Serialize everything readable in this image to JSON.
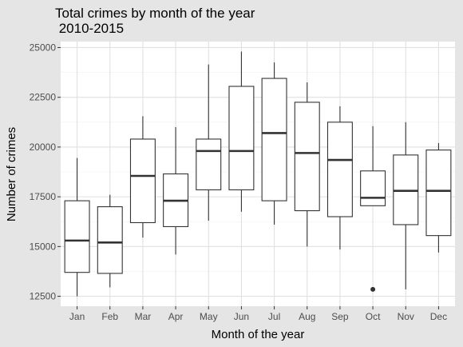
{
  "chart_data": {
    "type": "boxplot",
    "title_lines": [
      "Total crimes by month of the year",
      " 2010-2015"
    ],
    "xlabel": "Month of the year",
    "ylabel": "Number of crimes",
    "ylim": [
      12000,
      25300
    ],
    "y_ticks": [
      12500,
      15000,
      17500,
      20000,
      22500,
      25000
    ],
    "y_tick_labels": [
      "12500",
      "15000",
      "17500",
      "20000",
      "22500",
      "25000"
    ],
    "grid": true,
    "categories": [
      "Jan",
      "Feb",
      "Mar",
      "Apr",
      "May",
      "Jun",
      "Jul",
      "Aug",
      "Sep",
      "Oct",
      "Nov",
      "Dec"
    ],
    "boxes": [
      {
        "whisker_low": 12500,
        "q1": 13700,
        "median": 15300,
        "q3": 17300,
        "whisker_high": 19450,
        "outliers": []
      },
      {
        "whisker_low": 12950,
        "q1": 13650,
        "median": 15200,
        "q3": 17000,
        "whisker_high": 17600,
        "outliers": []
      },
      {
        "whisker_low": 15450,
        "q1": 16200,
        "median": 18550,
        "q3": 20400,
        "whisker_high": 21550,
        "outliers": []
      },
      {
        "whisker_low": 14600,
        "q1": 16000,
        "median": 17300,
        "q3": 18650,
        "whisker_high": 21000,
        "outliers": []
      },
      {
        "whisker_low": 16300,
        "q1": 17850,
        "median": 19800,
        "q3": 20400,
        "whisker_high": 24150,
        "outliers": []
      },
      {
        "whisker_low": 16750,
        "q1": 17850,
        "median": 19800,
        "q3": 23050,
        "whisker_high": 24800,
        "outliers": []
      },
      {
        "whisker_low": 16100,
        "q1": 17300,
        "median": 20700,
        "q3": 23450,
        "whisker_high": 24250,
        "outliers": []
      },
      {
        "whisker_low": 15000,
        "q1": 16800,
        "median": 19700,
        "q3": 22250,
        "whisker_high": 23250,
        "outliers": []
      },
      {
        "whisker_low": 14850,
        "q1": 16500,
        "median": 19350,
        "q3": 21250,
        "whisker_high": 22050,
        "outliers": []
      },
      {
        "whisker_low": 17050,
        "q1": 17050,
        "median": 17450,
        "q3": 18800,
        "whisker_high": 21050,
        "outliers": [
          12850
        ]
      },
      {
        "whisker_low": 12850,
        "q1": 16100,
        "median": 17800,
        "q3": 19600,
        "whisker_high": 21250,
        "outliers": []
      },
      {
        "whisker_low": 14700,
        "q1": 15550,
        "median": 17800,
        "q3": 19850,
        "whisker_high": 20200,
        "outliers": []
      }
    ],
    "colors": {
      "page_background": "#e5e5e5",
      "panel_background": "#ffffff",
      "grid_major": "#e0e0e0",
      "grid_minor": "#f0f0f0",
      "box_fill": "#ffffff",
      "box_stroke": "#333333",
      "tick_text": "#4d4d4d",
      "title_text": "#000000"
    }
  }
}
